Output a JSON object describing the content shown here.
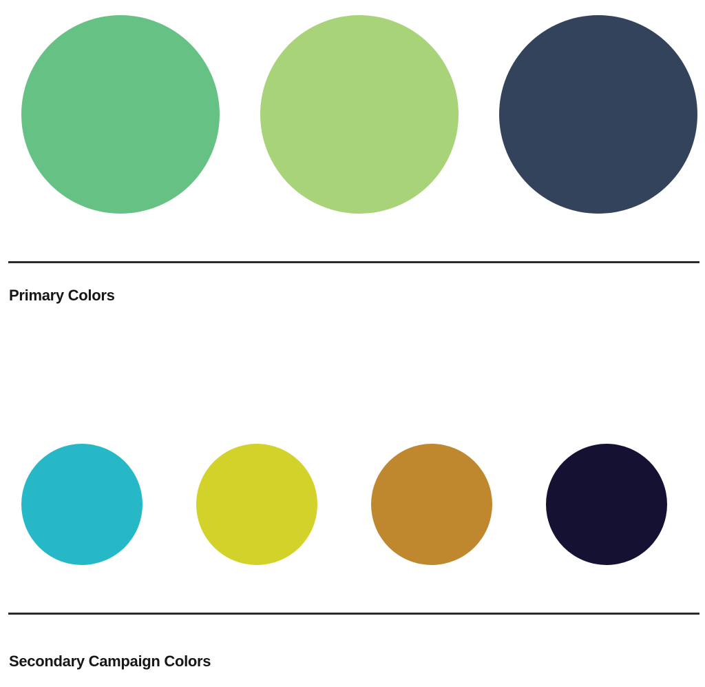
{
  "primary": {
    "label": "Primary Colors",
    "swatches": [
      {
        "name": "green",
        "color": "#66C185"
      },
      {
        "name": "light-green",
        "color": "#A9D379"
      },
      {
        "name": "navy",
        "color": "#33435B"
      }
    ]
  },
  "secondary": {
    "label": "Secondary Campaign Colors",
    "swatches": [
      {
        "name": "teal",
        "color": "#27B8C7"
      },
      {
        "name": "yellow",
        "color": "#D2D22A"
      },
      {
        "name": "ochre",
        "color": "#BF872E"
      },
      {
        "name": "midnight",
        "color": "#141133"
      }
    ]
  }
}
